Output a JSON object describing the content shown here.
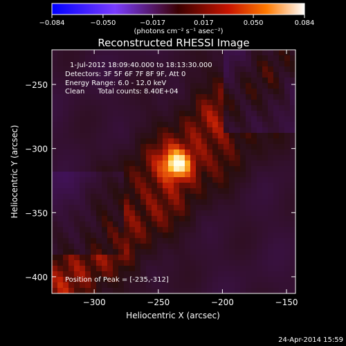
{
  "chart_data": {
    "type": "heatmap",
    "title": "Reconstructed RHESSI Image",
    "xlabel": "Heliocentric X (arcsec)",
    "ylabel": "Heliocentric Y (arcsec)",
    "xlim": [
      -333,
      -143
    ],
    "ylim": [
      -413,
      -223
    ],
    "x_ticks": [
      -300,
      -250,
      -200,
      -150
    ],
    "x_tick_labels": [
      "−300",
      "−250",
      "−200",
      "−150"
    ],
    "y_ticks": [
      -250,
      -300,
      -350,
      -400
    ],
    "y_tick_labels": [
      "−250",
      "−300",
      "−350",
      "−400"
    ],
    "colorbar": {
      "range": [
        -0.084,
        0.084
      ],
      "ticks": [
        -0.084,
        -0.05,
        -0.017,
        0.017,
        0.05,
        0.084
      ],
      "tick_labels": [
        "−0.084",
        "−0.050",
        "−0.017",
        "0.017",
        "0.050",
        "0.084"
      ],
      "unit_label": "(photons cm⁻² s⁻¹ asec⁻²)"
    },
    "annotations": [
      "1-Jul-2012 18:09:40.000 to 18:13:30.000",
      "Detectors: 3F 5F 6F 7F 8F 9F, Att 0",
      "Energy Range: 6.0 - 12.0 keV",
      "Clean      Total counts: 8.40E+04",
      "Position of Peak = [-235,-312]"
    ],
    "peak": {
      "x": -235,
      "y": -312
    },
    "grid": false
  },
  "footer_date": "24-Apr-2014 15:59"
}
